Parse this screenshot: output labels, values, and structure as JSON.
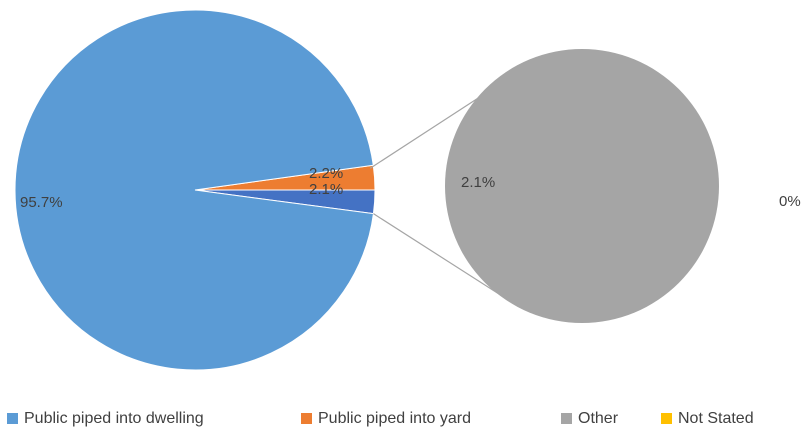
{
  "chart_data": {
    "type": "pie",
    "subtype": "pie-of-pie",
    "legend_position": "bottom",
    "slices": [
      {
        "name": "Public piped into dwelling",
        "value": 95.7,
        "label": "95.7%",
        "color": "#5b9bd5"
      },
      {
        "name": "Public piped into yard",
        "value": 2.2,
        "label": "2.2%",
        "color": "#ed7d31"
      },
      {
        "name": "Other",
        "value": 2.1,
        "label": "2.1%",
        "color": "#4472c4"
      }
    ],
    "secondary_pie": {
      "slices": [
        {
          "name": "Other",
          "value": 2.1,
          "label": "2.1%",
          "color": "#a5a5a5"
        },
        {
          "name": "Not Stated",
          "value": 0,
          "label": "0%",
          "color": "#ffc000"
        }
      ]
    },
    "legend": [
      {
        "name": "Public piped into dwelling",
        "color": "#5b9bd5"
      },
      {
        "name": "Public piped into yard",
        "color": "#ed7d31"
      },
      {
        "name": "Other",
        "color": "#a5a5a5"
      },
      {
        "name": "Not Stated",
        "color": "#ffc000"
      }
    ]
  }
}
